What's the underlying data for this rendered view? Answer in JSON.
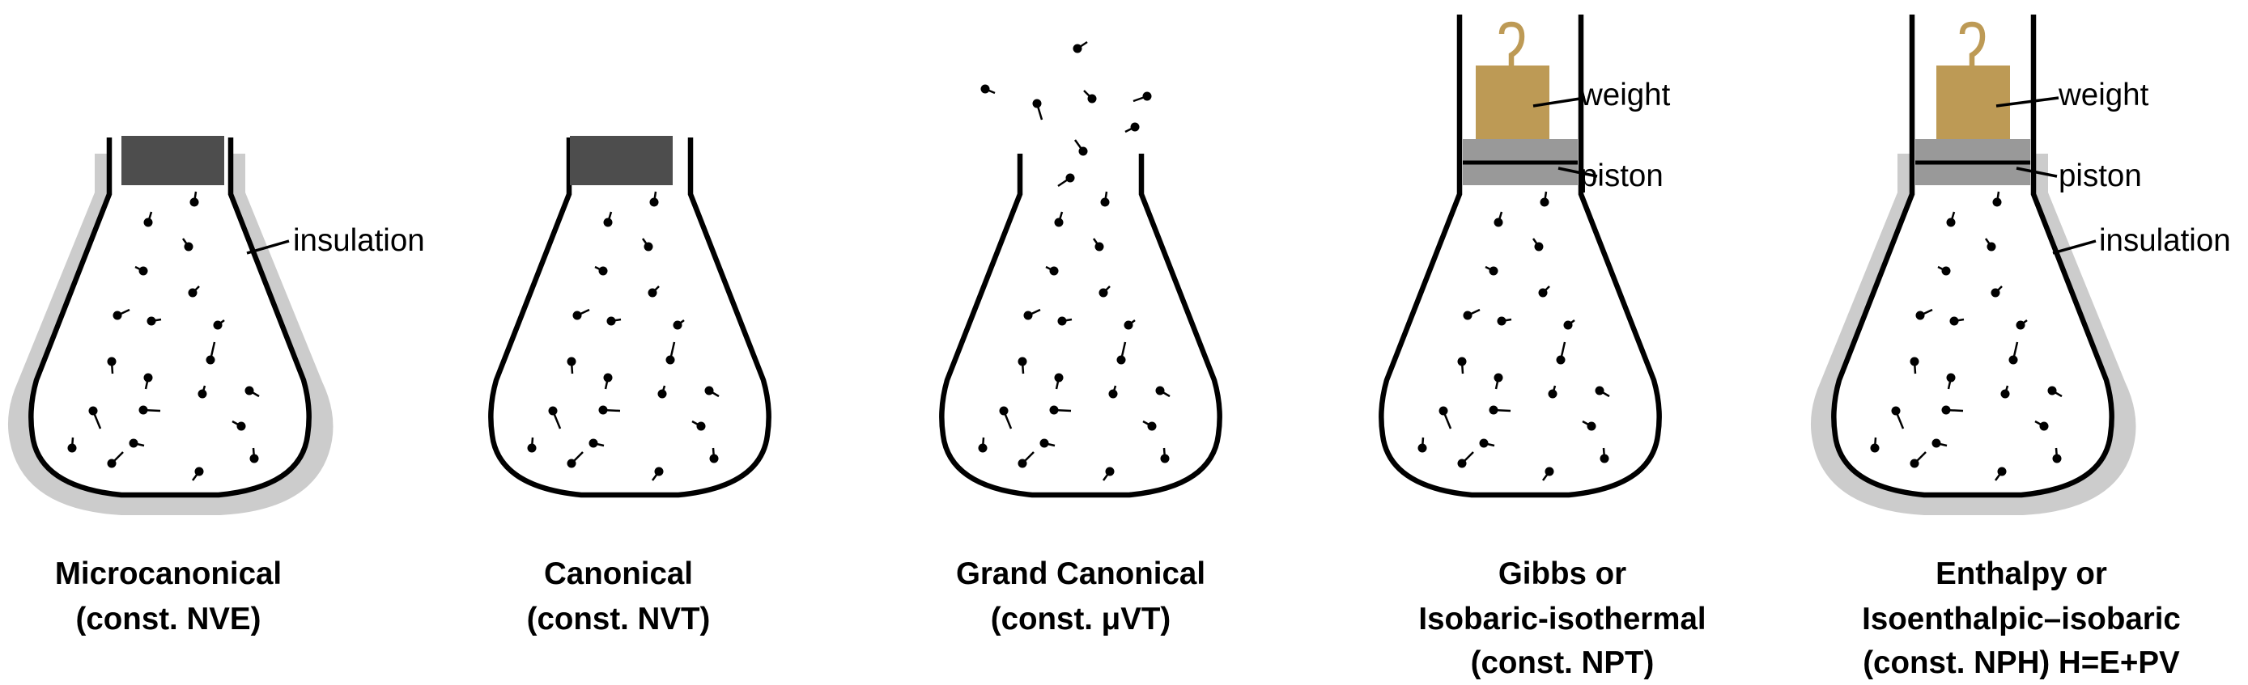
{
  "labels": {
    "insulation": "insulation",
    "weight": "weight",
    "piston": "piston"
  },
  "ensembles": [
    {
      "line1": "Microcanonical",
      "line2": "(const. NVE)",
      "line3": ""
    },
    {
      "line1": "Canonical",
      "line2": "(const. NVT)",
      "line3": ""
    },
    {
      "line1": "Grand Canonical",
      "line2": "(const. μVT)",
      "line3": ""
    },
    {
      "line1": "Gibbs or",
      "line2": "Isobaric-isothermal",
      "line3": "(const. NPT)"
    },
    {
      "line1": "Enthalpy or",
      "line2": "Isoenthalpic–isobaric",
      "line3": "(const. NPH) H=E+PV"
    }
  ],
  "colors": {
    "outline": "#000000",
    "insulation": "#cccccc",
    "stopper": "#4d4d4d",
    "piston": "#999999",
    "weight": "#bd9a55"
  }
}
